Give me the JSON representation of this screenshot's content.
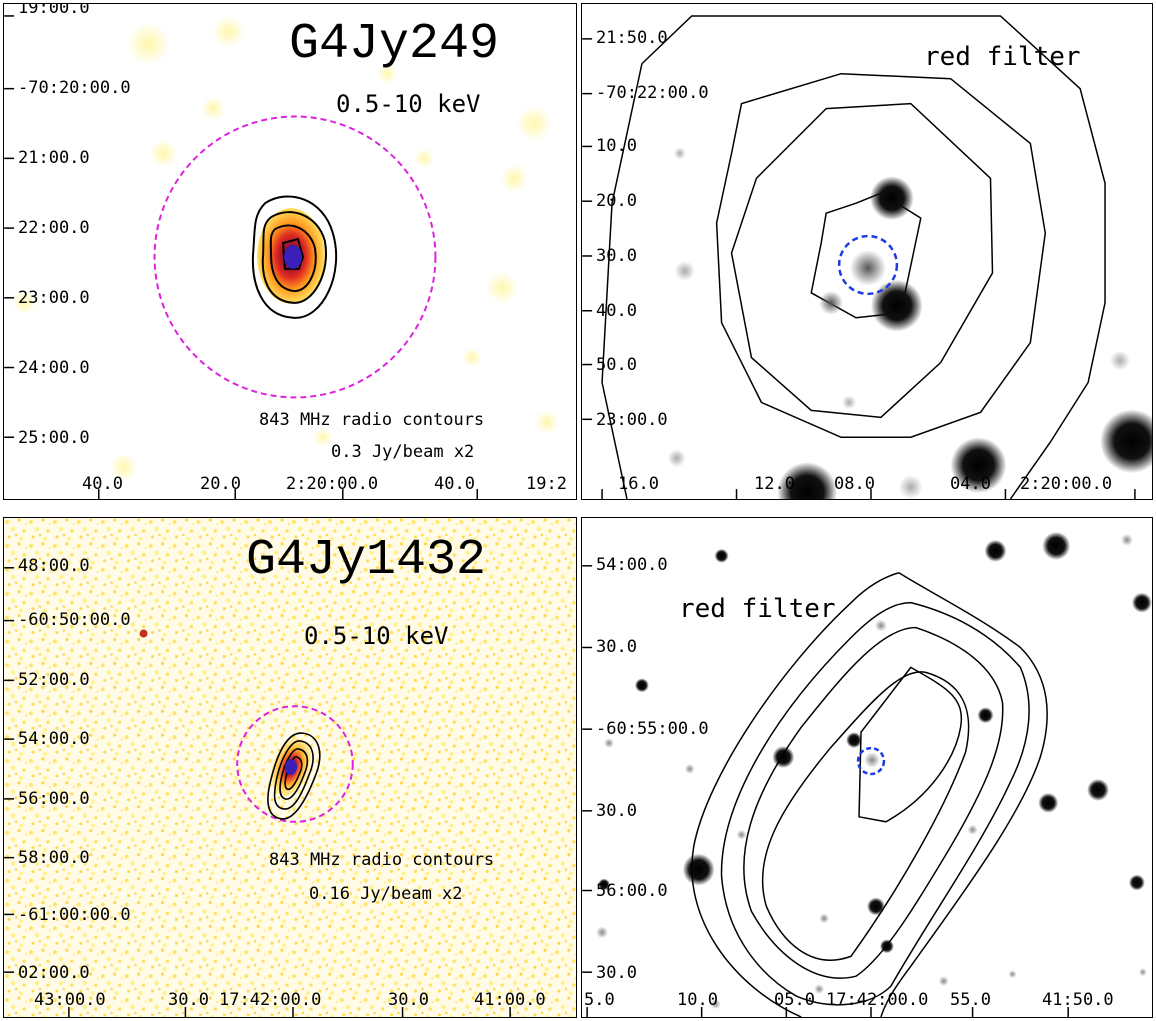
{
  "panels": {
    "a": {
      "source": "G4Jy249",
      "band": "0.5-10 keV",
      "contour_note_1": "843 MHz radio contours",
      "contour_note_2": "0.3 Jy/beam x2",
      "y_ticks": [
        "19:00.0",
        "-70:20:00.0",
        "21:00.0",
        "22:00.0",
        "23:00.0",
        "24:00.0",
        "25:00.0"
      ],
      "x_ticks": [
        "40.0",
        "20.0",
        "2:20:00.0",
        "40.0",
        "19:2"
      ],
      "colors": {
        "ring": "#dd22dd",
        "peak": "#3a1fb8"
      }
    },
    "b": {
      "filter": "red filter",
      "y_ticks": [
        "21:50.0",
        "-70:22:00.0",
        "10.0",
        "20.0",
        "30.0",
        "40.0",
        "50.0",
        "23:00.0"
      ],
      "x_ticks": [
        "16.0",
        "12.0",
        "08.0",
        "04.0",
        "2:20:00.0"
      ],
      "colors": {
        "circle": "#1e3be0"
      }
    },
    "c": {
      "source": "G4Jy1432",
      "band": "0.5-10 keV",
      "contour_note_1": "843 MHz radio contours",
      "contour_note_2": "0.16 Jy/beam x2",
      "y_ticks": [
        "48:00.0",
        "-60:50:00.0",
        "52:00.0",
        "54:00.0",
        "56:00.0",
        "58:00.0",
        "-61:00:00.0",
        "02:00.0"
      ],
      "x_ticks": [
        "43:00.0",
        "30.0",
        "17:42:00.0",
        "30.0",
        "41:00.0"
      ],
      "colors": {
        "ring": "#dd22dd",
        "peak": "#3a1fb8"
      }
    },
    "d": {
      "filter": "red filter",
      "y_ticks": [
        "54:00.0",
        "30.0",
        "-60:55:00.0",
        "30.0",
        "56:00.0",
        "30.0"
      ],
      "x_ticks": [
        "5.0",
        "10.0",
        "05.0",
        "17:42:00.0",
        "55.0",
        "41:50.0"
      ],
      "colors": {
        "circle": "#1e3be0"
      }
    }
  }
}
